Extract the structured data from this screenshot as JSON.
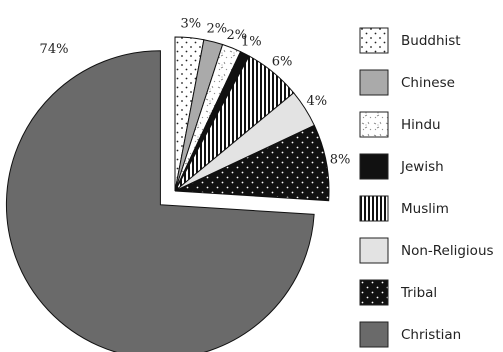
{
  "chart_data": {
    "type": "pie",
    "title": "",
    "slices": [
      {
        "label": "Buddhist",
        "value": 3,
        "text": "3%",
        "pattern": "dots",
        "color": "#ffffff"
      },
      {
        "label": "Chinese",
        "value": 2,
        "text": "2%",
        "pattern": "solid",
        "color": "#aaaaaa"
      },
      {
        "label": "Hindu",
        "value": 2,
        "text": "2%",
        "pattern": "speckle",
        "color": "#ffffff"
      },
      {
        "label": "Jewish",
        "value": 1,
        "text": "1%",
        "pattern": "solid",
        "color": "#111111"
      },
      {
        "label": "Muslim",
        "value": 6,
        "text": "6%",
        "pattern": "vstripes",
        "color": "#ffffff"
      },
      {
        "label": "Non-Religious",
        "value": 4,
        "text": "4%",
        "pattern": "solid",
        "color": "#e3e3e3"
      },
      {
        "label": "Tribal",
        "value": 8,
        "text": "8%",
        "pattern": "darkdots",
        "color": "#1a1a1a"
      },
      {
        "label": "Christian",
        "value": 74,
        "text": "74%",
        "pattern": "solid",
        "color": "#6a6a6a",
        "exploded": true
      }
    ],
    "legend_position": "right"
  }
}
